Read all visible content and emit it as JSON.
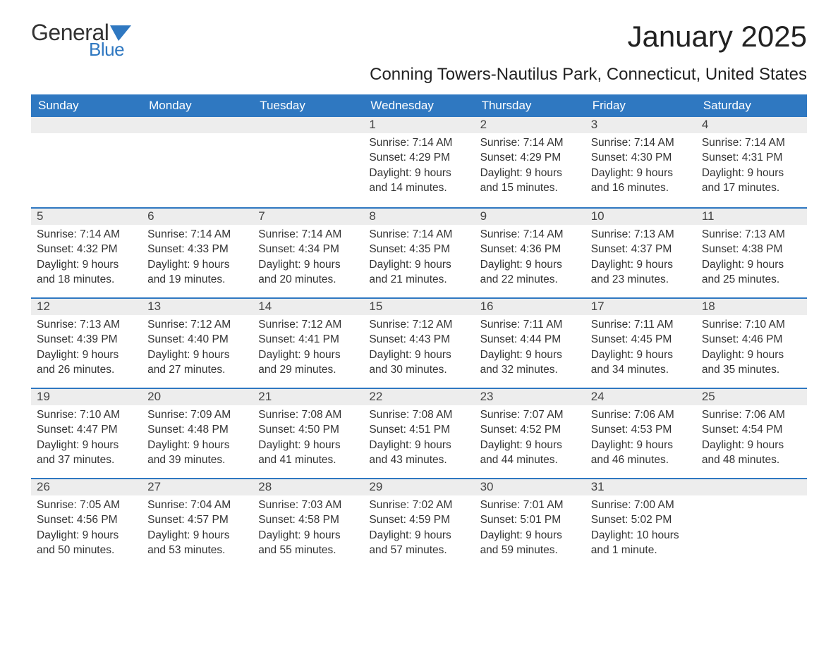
{
  "logo": {
    "word1": "General",
    "word2": "Blue",
    "icon_color": "#2f78c1"
  },
  "title": "January 2025",
  "subtitle": "Conning Towers-Nautilus Park, Connecticut, United States",
  "colors": {
    "header_bg": "#2f78c1",
    "header_text": "#ffffff",
    "daynum_bg": "#ededed",
    "row_divider": "#2f78c1",
    "body_text": "#333333",
    "page_bg": "#ffffff"
  },
  "fonts": {
    "title_size_pt": 32,
    "subtitle_size_pt": 18,
    "header_size_pt": 13,
    "body_size_pt": 12
  },
  "weekday_headers": [
    "Sunday",
    "Monday",
    "Tuesday",
    "Wednesday",
    "Thursday",
    "Friday",
    "Saturday"
  ],
  "weeks": [
    [
      {
        "day": null
      },
      {
        "day": null
      },
      {
        "day": null
      },
      {
        "day": "1",
        "sunrise": "Sunrise: 7:14 AM",
        "sunset": "Sunset: 4:29 PM",
        "daylight1": "Daylight: 9 hours",
        "daylight2": "and 14 minutes."
      },
      {
        "day": "2",
        "sunrise": "Sunrise: 7:14 AM",
        "sunset": "Sunset: 4:29 PM",
        "daylight1": "Daylight: 9 hours",
        "daylight2": "and 15 minutes."
      },
      {
        "day": "3",
        "sunrise": "Sunrise: 7:14 AM",
        "sunset": "Sunset: 4:30 PM",
        "daylight1": "Daylight: 9 hours",
        "daylight2": "and 16 minutes."
      },
      {
        "day": "4",
        "sunrise": "Sunrise: 7:14 AM",
        "sunset": "Sunset: 4:31 PM",
        "daylight1": "Daylight: 9 hours",
        "daylight2": "and 17 minutes."
      }
    ],
    [
      {
        "day": "5",
        "sunrise": "Sunrise: 7:14 AM",
        "sunset": "Sunset: 4:32 PM",
        "daylight1": "Daylight: 9 hours",
        "daylight2": "and 18 minutes."
      },
      {
        "day": "6",
        "sunrise": "Sunrise: 7:14 AM",
        "sunset": "Sunset: 4:33 PM",
        "daylight1": "Daylight: 9 hours",
        "daylight2": "and 19 minutes."
      },
      {
        "day": "7",
        "sunrise": "Sunrise: 7:14 AM",
        "sunset": "Sunset: 4:34 PM",
        "daylight1": "Daylight: 9 hours",
        "daylight2": "and 20 minutes."
      },
      {
        "day": "8",
        "sunrise": "Sunrise: 7:14 AM",
        "sunset": "Sunset: 4:35 PM",
        "daylight1": "Daylight: 9 hours",
        "daylight2": "and 21 minutes."
      },
      {
        "day": "9",
        "sunrise": "Sunrise: 7:14 AM",
        "sunset": "Sunset: 4:36 PM",
        "daylight1": "Daylight: 9 hours",
        "daylight2": "and 22 minutes."
      },
      {
        "day": "10",
        "sunrise": "Sunrise: 7:13 AM",
        "sunset": "Sunset: 4:37 PM",
        "daylight1": "Daylight: 9 hours",
        "daylight2": "and 23 minutes."
      },
      {
        "day": "11",
        "sunrise": "Sunrise: 7:13 AM",
        "sunset": "Sunset: 4:38 PM",
        "daylight1": "Daylight: 9 hours",
        "daylight2": "and 25 minutes."
      }
    ],
    [
      {
        "day": "12",
        "sunrise": "Sunrise: 7:13 AM",
        "sunset": "Sunset: 4:39 PM",
        "daylight1": "Daylight: 9 hours",
        "daylight2": "and 26 minutes."
      },
      {
        "day": "13",
        "sunrise": "Sunrise: 7:12 AM",
        "sunset": "Sunset: 4:40 PM",
        "daylight1": "Daylight: 9 hours",
        "daylight2": "and 27 minutes."
      },
      {
        "day": "14",
        "sunrise": "Sunrise: 7:12 AM",
        "sunset": "Sunset: 4:41 PM",
        "daylight1": "Daylight: 9 hours",
        "daylight2": "and 29 minutes."
      },
      {
        "day": "15",
        "sunrise": "Sunrise: 7:12 AM",
        "sunset": "Sunset: 4:43 PM",
        "daylight1": "Daylight: 9 hours",
        "daylight2": "and 30 minutes."
      },
      {
        "day": "16",
        "sunrise": "Sunrise: 7:11 AM",
        "sunset": "Sunset: 4:44 PM",
        "daylight1": "Daylight: 9 hours",
        "daylight2": "and 32 minutes."
      },
      {
        "day": "17",
        "sunrise": "Sunrise: 7:11 AM",
        "sunset": "Sunset: 4:45 PM",
        "daylight1": "Daylight: 9 hours",
        "daylight2": "and 34 minutes."
      },
      {
        "day": "18",
        "sunrise": "Sunrise: 7:10 AM",
        "sunset": "Sunset: 4:46 PM",
        "daylight1": "Daylight: 9 hours",
        "daylight2": "and 35 minutes."
      }
    ],
    [
      {
        "day": "19",
        "sunrise": "Sunrise: 7:10 AM",
        "sunset": "Sunset: 4:47 PM",
        "daylight1": "Daylight: 9 hours",
        "daylight2": "and 37 minutes."
      },
      {
        "day": "20",
        "sunrise": "Sunrise: 7:09 AM",
        "sunset": "Sunset: 4:48 PM",
        "daylight1": "Daylight: 9 hours",
        "daylight2": "and 39 minutes."
      },
      {
        "day": "21",
        "sunrise": "Sunrise: 7:08 AM",
        "sunset": "Sunset: 4:50 PM",
        "daylight1": "Daylight: 9 hours",
        "daylight2": "and 41 minutes."
      },
      {
        "day": "22",
        "sunrise": "Sunrise: 7:08 AM",
        "sunset": "Sunset: 4:51 PM",
        "daylight1": "Daylight: 9 hours",
        "daylight2": "and 43 minutes."
      },
      {
        "day": "23",
        "sunrise": "Sunrise: 7:07 AM",
        "sunset": "Sunset: 4:52 PM",
        "daylight1": "Daylight: 9 hours",
        "daylight2": "and 44 minutes."
      },
      {
        "day": "24",
        "sunrise": "Sunrise: 7:06 AM",
        "sunset": "Sunset: 4:53 PM",
        "daylight1": "Daylight: 9 hours",
        "daylight2": "and 46 minutes."
      },
      {
        "day": "25",
        "sunrise": "Sunrise: 7:06 AM",
        "sunset": "Sunset: 4:54 PM",
        "daylight1": "Daylight: 9 hours",
        "daylight2": "and 48 minutes."
      }
    ],
    [
      {
        "day": "26",
        "sunrise": "Sunrise: 7:05 AM",
        "sunset": "Sunset: 4:56 PM",
        "daylight1": "Daylight: 9 hours",
        "daylight2": "and 50 minutes."
      },
      {
        "day": "27",
        "sunrise": "Sunrise: 7:04 AM",
        "sunset": "Sunset: 4:57 PM",
        "daylight1": "Daylight: 9 hours",
        "daylight2": "and 53 minutes."
      },
      {
        "day": "28",
        "sunrise": "Sunrise: 7:03 AM",
        "sunset": "Sunset: 4:58 PM",
        "daylight1": "Daylight: 9 hours",
        "daylight2": "and 55 minutes."
      },
      {
        "day": "29",
        "sunrise": "Sunrise: 7:02 AM",
        "sunset": "Sunset: 4:59 PM",
        "daylight1": "Daylight: 9 hours",
        "daylight2": "and 57 minutes."
      },
      {
        "day": "30",
        "sunrise": "Sunrise: 7:01 AM",
        "sunset": "Sunset: 5:01 PM",
        "daylight1": "Daylight: 9 hours",
        "daylight2": "and 59 minutes."
      },
      {
        "day": "31",
        "sunrise": "Sunrise: 7:00 AM",
        "sunset": "Sunset: 5:02 PM",
        "daylight1": "Daylight: 10 hours",
        "daylight2": "and 1 minute."
      },
      {
        "day": null
      }
    ]
  ]
}
